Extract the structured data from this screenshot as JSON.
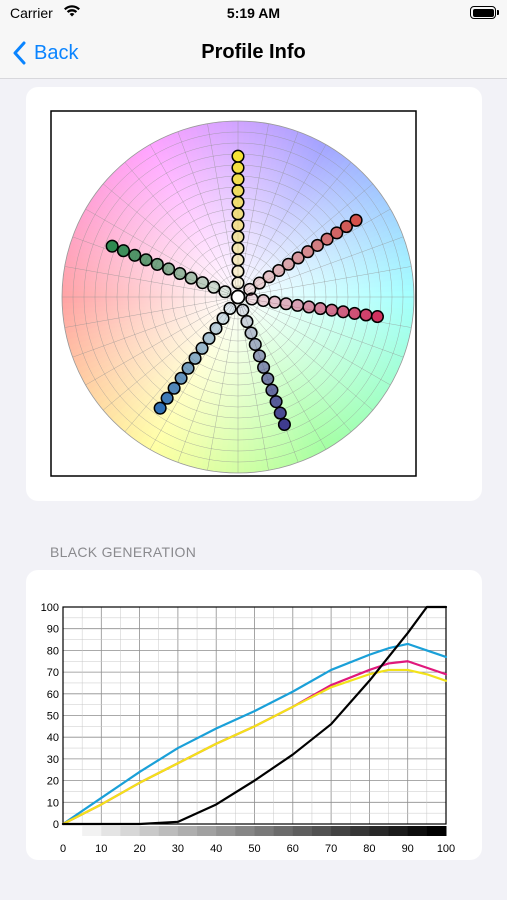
{
  "status_bar": {
    "carrier": "Carrier",
    "time": "5:19 AM"
  },
  "nav": {
    "back_label": "Back",
    "title": "Profile Info"
  },
  "section_header": "BLACK GENERATION",
  "chart_data": [
    {
      "type": "scatter",
      "series": [
        {
          "name": "",
          "color": "#f5e233",
          "angle_deg": 90,
          "points": 12
        },
        {
          "name": "",
          "color": "#d4504a",
          "angle_deg": 33,
          "points": 12
        },
        {
          "name": "",
          "color": "#d2325f",
          "angle_deg": -8,
          "points": 12
        },
        {
          "name": "",
          "color": "#3f3c8f",
          "angle_deg": -70,
          "points": 11
        },
        {
          "name": "",
          "color": "#2f70b6",
          "angle_deg": -125,
          "points": 11
        },
        {
          "name": "",
          "color": "#2e8a50",
          "angle_deg": 158,
          "points": 11
        }
      ]
    },
    {
      "type": "line",
      "x": [
        0,
        10,
        20,
        30,
        40,
        50,
        60,
        70,
        80,
        85,
        90,
        95,
        100
      ],
      "series": [
        {
          "name": "",
          "color": "#1aa0d8",
          "values": [
            0,
            12,
            24,
            35,
            44,
            52,
            61,
            71,
            78,
            81,
            83,
            80,
            77
          ]
        },
        {
          "name": "",
          "color": "#e0187c",
          "values": [
            0,
            9,
            19,
            28,
            37,
            45,
            54,
            64,
            71,
            74,
            75,
            72,
            69
          ]
        },
        {
          "name": "",
          "color": "#f2e21a",
          "values": [
            0,
            9,
            19,
            28,
            37,
            45,
            54,
            63,
            69,
            71,
            71,
            69,
            66
          ]
        },
        {
          "name": "",
          "color": "#000000",
          "values": [
            0,
            0,
            0,
            1,
            9,
            20,
            32,
            46,
            66,
            77,
            88,
            100,
            100
          ]
        }
      ],
      "x_ticks": [
        0,
        10,
        20,
        30,
        40,
        50,
        60,
        70,
        80,
        90,
        100
      ],
      "y_ticks": [
        0,
        10,
        20,
        30,
        40,
        50,
        60,
        70,
        80,
        90,
        100
      ],
      "xlim": [
        0,
        100
      ],
      "ylim": [
        0,
        100
      ],
      "grid": true
    }
  ]
}
